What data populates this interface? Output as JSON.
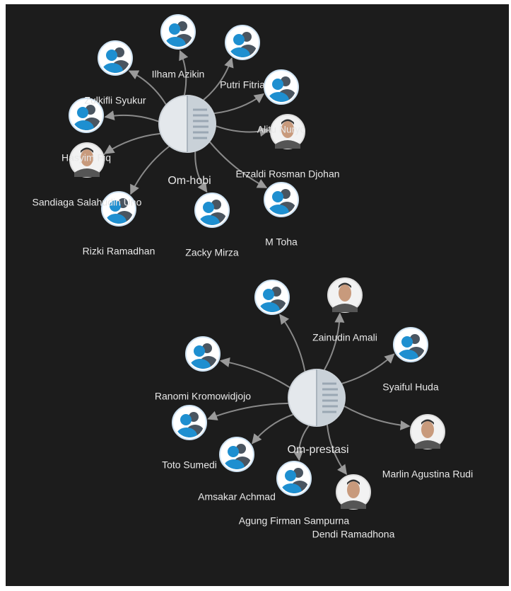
{
  "graphs": [
    {
      "hub": {
        "label": "Om-hobi"
      },
      "nodes": [
        {
          "label": "Ilham Azikin"
        },
        {
          "label": "Zulkifli Syukur"
        },
        {
          "label": "Putri Fitria"
        },
        {
          "label": "Alitu Nuryo"
        },
        {
          "label": "Hasyim Fiq"
        },
        {
          "label": "Sandiaga Salahudin Uno"
        },
        {
          "label": "Erzaldi Rosman Djohan"
        },
        {
          "label": "Rizki Ramadhan"
        },
        {
          "label": "Zacky Mirza"
        },
        {
          "label": "M Toha"
        }
      ]
    },
    {
      "hub": {
        "label": "Om-prestasi"
      },
      "nodes": [
        {},
        {
          "label": "Zainudin Amali"
        },
        {
          "label": "Ranomi Kromowidjojo"
        },
        {
          "label": "Syaiful Huda"
        },
        {
          "label": "Marlin Agustina Rudi"
        },
        {
          "label": "Toto Sumedi"
        },
        {
          "label": "Amsakar Achmad"
        },
        {
          "label": "Agung Firman Sampurna"
        },
        {
          "label": "Dendi Ramadhona"
        }
      ]
    }
  ]
}
